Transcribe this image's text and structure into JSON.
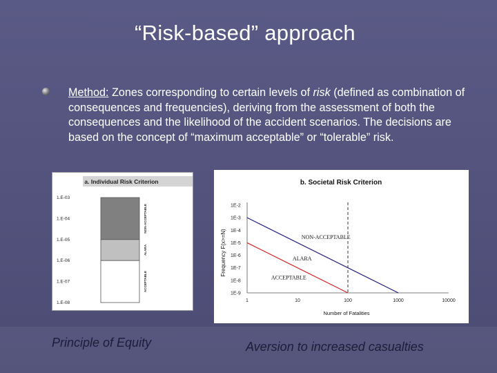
{
  "slide": {
    "title": "“Risk-based” approach",
    "bullet": {
      "label": "Method:",
      "text_part1": " Zones corresponding to certain levels of ",
      "italic_word": "risk",
      "text_part2": " (defined as combination of consequences and frequencies), deriving from the assessment of both the consequences and the likelihood of the accident scenarios. The decisions are based on the concept of “maximum acceptable” or “tolerable” risk."
    },
    "caption_left": "Principle of Equity",
    "caption_right": "Aversion to increased casualties"
  },
  "colors": {
    "non_acceptable": "#808080",
    "alara": "#c0c0c0",
    "acceptable": "#ffffff",
    "upper_line": "#1f1f7a",
    "lower_line": "#cc2020"
  },
  "chart_data": [
    {
      "type": "bar",
      "title": "a. Individual Risk Criterion",
      "y_ticks": [
        "1.E-03",
        "1.E-04",
        "1.E-05",
        "1.E-06",
        "1.E-07",
        "1.E-08"
      ],
      "scale": "log",
      "ylim": [
        1e-08,
        0.001
      ],
      "zones": [
        {
          "name": "NON-ACCEPTABLE",
          "from": 1e-05,
          "to": 0.001
        },
        {
          "name": "ALARA",
          "from": 1e-06,
          "to": 1e-05
        },
        {
          "name": "ACCEPTABLE",
          "from": 1e-08,
          "to": 1e-06
        }
      ]
    },
    {
      "type": "line",
      "title": "b. Societal Risk Criterion",
      "xlabel": "Number of Fatalities",
      "ylabel": "Frequency F(x>=N)",
      "x_scale": "log",
      "y_scale": "log",
      "x_ticks": [
        "1",
        "10",
        "100",
        "1000",
        "10000"
      ],
      "y_ticks": [
        "1E-2",
        "1E-3",
        "1E-4",
        "1E-5",
        "1E-6",
        "1E-7",
        "1E-8",
        "1E-9"
      ],
      "xlim": [
        1,
        10000
      ],
      "ylim": [
        1e-09,
        0.01
      ],
      "series": [
        {
          "x": [
            1,
            1000
          ],
          "y": [
            0.001,
            1e-09
          ]
        },
        {
          "x": [
            1,
            100
          ],
          "y": [
            1e-05,
            1e-09
          ]
        }
      ],
      "vline_x": 100,
      "zone_labels": [
        "NON-ACCEPTABLE",
        "ALARA",
        "ACCEPTABLE"
      ]
    }
  ]
}
